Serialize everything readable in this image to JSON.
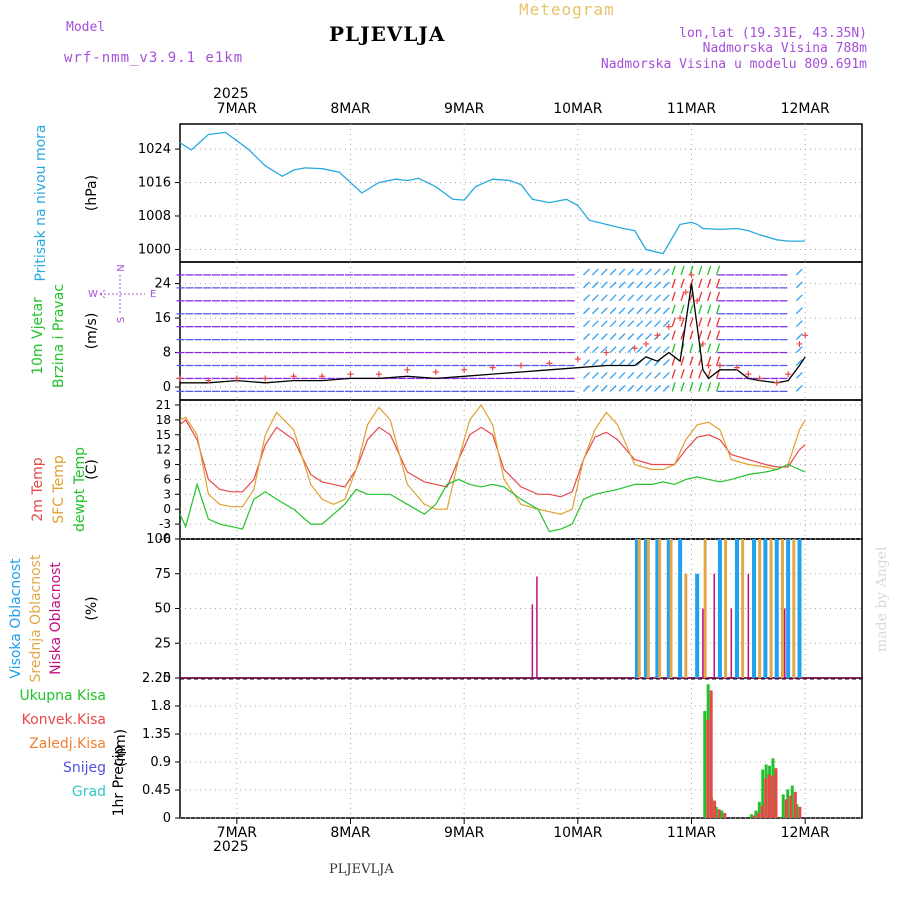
{
  "header": {
    "model_label": "Model",
    "model_name": "wrf-nmm_v3.9.1 e1km",
    "meteogram_label": "Meteogram",
    "station": "PLJEVLJA",
    "coords": "lon,lat (19.31E, 43.35N)",
    "elevation": "Nadmorska Visina 788m",
    "model_elevation": "Nadmorska Visina u modelu 809.691m",
    "signature": "made by Angel",
    "footer": "PLJEVLJA"
  },
  "colors": {
    "pressure": "#29a8e0",
    "temp2m": "#e84848",
    "sfc": "#e0a030",
    "dewpt": "#22c22a",
    "high_cloud": "#1fa0f0",
    "mid_cloud": "#e0a848",
    "low_cloud": "#c01080",
    "total_rain": "#22c22a",
    "conv_rain": "#e84848",
    "frz_rain": "#f08030",
    "snow": "#5050e0",
    "hail": "#30c8c8",
    "wind_label": "#22c22a",
    "wind_dir": "#a64fd8"
  },
  "chart_data": [
    {
      "type": "line",
      "panel": "pressure",
      "ylabel_lines": [
        "Pritisak na nivou mora"
      ],
      "unit": "(hPa)",
      "ylim": [
        997,
        1030
      ],
      "yticks": [
        1000,
        1008,
        1016,
        1024
      ],
      "x_days": [
        0,
        0.1,
        0.25,
        0.4,
        0.5,
        0.6,
        0.75,
        0.9,
        1.0,
        1.1,
        1.25,
        1.4,
        1.5,
        1.6,
        1.75,
        1.9,
        2.0,
        2.1,
        2.25,
        2.4,
        2.5,
        2.6,
        2.75,
        2.9,
        3.0,
        3.1,
        3.25,
        3.4,
        3.5,
        3.6,
        3.75,
        3.9,
        4.0,
        4.1,
        4.25,
        4.4,
        4.5,
        4.55,
        4.6,
        4.75,
        4.9,
        5.0,
        5.1,
        5.25,
        5.35,
        5.5
      ],
      "y": [
        1025.5,
        1023.8,
        1027.5,
        1028.0,
        1026.0,
        1024.0,
        1020.0,
        1017.5,
        1019.0,
        1019.5,
        1019.3,
        1018.5,
        1016.0,
        1013.5,
        1016.0,
        1016.8,
        1016.5,
        1017.0,
        1015.0,
        1012.0,
        1011.8,
        1015.0,
        1016.8,
        1016.5,
        1015.5,
        1012.0,
        1011.2,
        1012.0,
        1010.5,
        1007.0,
        1006.0,
        1005.0,
        1004.5,
        1000.0,
        999.0,
        1006.0,
        1006.5,
        1006.0,
        1005.0,
        1004.8,
        1005.0,
        1004.5,
        1003.5,
        1002.3,
        1002.0,
        1002.0
      ]
    },
    {
      "type": "line",
      "panel": "wind",
      "ylabel_lines": [
        "10m Vjetar",
        "Brzina i Pravac"
      ],
      "unit": "(m/s)",
      "direction_legend": [
        "N",
        "W",
        "E",
        "S"
      ],
      "ylim": [
        -3,
        29
      ],
      "yticks": [
        0,
        8,
        16,
        24
      ],
      "x_days": [
        0,
        0.25,
        0.5,
        0.75,
        1.0,
        1.25,
        1.5,
        1.75,
        2.0,
        2.25,
        2.5,
        2.75,
        3.0,
        3.25,
        3.5,
        3.75,
        4.0,
        4.1,
        4.2,
        4.3,
        4.4,
        4.45,
        4.5,
        4.55,
        4.6,
        4.65,
        4.75,
        4.9,
        5.0,
        5.1,
        5.25,
        5.35,
        5.45,
        5.5
      ],
      "speed": [
        1.0,
        1.0,
        1.5,
        1.0,
        1.5,
        1.5,
        2.0,
        2.0,
        2.5,
        2.0,
        2.5,
        3.0,
        3.5,
        4.0,
        4.5,
        5.0,
        5.0,
        7.0,
        6.0,
        8.0,
        6.0,
        15.0,
        24.0,
        14.0,
        4.0,
        2.0,
        4.0,
        4.0,
        2.0,
        1.5,
        1.0,
        1.5,
        5.0,
        7.0
      ],
      "gust": [
        2.0,
        1.5,
        2.0,
        2.0,
        2.5,
        2.5,
        3.0,
        3.0,
        4.0,
        3.5,
        4.0,
        4.5,
        5.0,
        5.5,
        6.5,
        8.0,
        9.0,
        10.0,
        12.0,
        14.0,
        16.0,
        22.0,
        26.0,
        20.0,
        10.0,
        5.0,
        5.0,
        4.5,
        3.0,
        2.0,
        1.0,
        3.0,
        10.0,
        12.0
      ]
    },
    {
      "type": "line",
      "panel": "temperature",
      "ylabel_lines": [
        "2m Temp",
        "SFC Temp",
        "dewpt Temp"
      ],
      "unit": "(C)",
      "ylim": [
        -6,
        22
      ],
      "yticks": [
        -6,
        -3,
        0,
        3,
        6,
        9,
        12,
        15,
        18,
        21
      ],
      "x_days": [
        0,
        0.05,
        0.15,
        0.25,
        0.35,
        0.45,
        0.55,
        0.65,
        0.75,
        0.85,
        1.0,
        1.15,
        1.25,
        1.35,
        1.45,
        1.55,
        1.65,
        1.75,
        1.85,
        2.0,
        2.15,
        2.25,
        2.35,
        2.45,
        2.55,
        2.65,
        2.75,
        2.85,
        3.0,
        3.15,
        3.25,
        3.35,
        3.45,
        3.55,
        3.65,
        3.75,
        3.85,
        4.0,
        4.15,
        4.25,
        4.35,
        4.45,
        4.55,
        4.65,
        4.75,
        4.85,
        5.0,
        5.15,
        5.25,
        5.35,
        5.45,
        5.5
      ],
      "series": [
        {
          "name": "2m Temp",
          "values": [
            17,
            18,
            14,
            6,
            4,
            3.5,
            3.5,
            6,
            13,
            16.5,
            14,
            7,
            5.5,
            5,
            4.5,
            8,
            14,
            16.5,
            15,
            7.5,
            5.5,
            5,
            4.5,
            10,
            15,
            16.5,
            15,
            8,
            4.5,
            3,
            3,
            2.5,
            3.5,
            10,
            14.5,
            15.5,
            14,
            10,
            9,
            9,
            9,
            12,
            14.5,
            15,
            14,
            11,
            10,
            9,
            8.5,
            8.5,
            12,
            13
          ]
        },
        {
          "name": "SFC Temp",
          "values": [
            18,
            18.5,
            15,
            3,
            1,
            0.5,
            0.5,
            4,
            15,
            19.5,
            16,
            5,
            2,
            1,
            2,
            8,
            17,
            20.5,
            18,
            5,
            1,
            0,
            0,
            10,
            18,
            21,
            17,
            6,
            1,
            0,
            -0.5,
            -1,
            0,
            10,
            16,
            19.5,
            17,
            9,
            8,
            8,
            9,
            14,
            17,
            17.5,
            16,
            10,
            9,
            8.5,
            8,
            9,
            16,
            18
          ]
        },
        {
          "name": "dewpt Temp",
          "values": [
            -1,
            -3.5,
            5,
            -2,
            -3,
            -3.5,
            -4,
            2,
            3.5,
            2,
            0,
            -3,
            -3,
            -1,
            1,
            4,
            3,
            3,
            3,
            1,
            -1,
            1,
            5,
            6,
            5,
            4.5,
            5,
            4.5,
            2,
            0,
            -4.5,
            -4,
            -3,
            2,
            3,
            3.5,
            4,
            5,
            5,
            5.5,
            5,
            6,
            6.5,
            6,
            5.5,
            6,
            7,
            7.5,
            8,
            9,
            8,
            7.5
          ]
        }
      ]
    },
    {
      "type": "bar",
      "panel": "cloud",
      "ylabel_lines": [
        "Visoka Oblacnost",
        "Srednja Oblacnost",
        "Niska Oblacnost"
      ],
      "unit": "(%)",
      "ylim": [
        0,
        100
      ],
      "yticks": [
        0,
        25,
        50,
        75,
        100
      ],
      "series": [
        {
          "name": "Visoka Oblacnost",
          "x_days": [
            4.02,
            4.1,
            4.2,
            4.3,
            4.4,
            4.55,
            4.75,
            4.9,
            5.05,
            5.15,
            5.25,
            5.35,
            5.45
          ],
          "values": [
            100,
            100,
            100,
            100,
            100,
            75,
            100,
            100,
            100,
            100,
            100,
            100,
            100
          ]
        },
        {
          "name": "Srednja Oblacnost",
          "x_days": [
            4.04,
            4.12,
            4.22,
            4.32,
            4.45,
            4.62,
            4.8,
            4.95,
            5.1,
            5.2,
            5.3,
            5.4
          ],
          "values": [
            100,
            100,
            100,
            100,
            75,
            100,
            100,
            100,
            100,
            100,
            100,
            100
          ]
        },
        {
          "name": "Niska Oblacnost",
          "x_days": [
            3.1,
            3.14,
            4.6,
            4.7,
            4.85,
            5.0,
            5.32
          ],
          "values": [
            53,
            73,
            50,
            75,
            50,
            75,
            50
          ]
        }
      ]
    },
    {
      "type": "bar",
      "panel": "precip",
      "ylabel_lines": [
        "1hr Precip"
      ],
      "unit": "(mm)",
      "legend": [
        "Ukupna Kisa",
        "Konvek.Kisa",
        "Zaledj.Kisa",
        "Snijeg",
        "Grad"
      ],
      "ylim": [
        0,
        2.25
      ],
      "yticks": [
        0,
        0.45,
        0.9,
        1.35,
        1.8,
        2.25
      ],
      "x_days": [
        4.63,
        4.66,
        4.69,
        4.73,
        4.78,
        5.04,
        5.08,
        5.11,
        5.14,
        5.17,
        5.2,
        5.23,
        5.26,
        5.32,
        5.36,
        5.4,
        5.44
      ],
      "series": [
        {
          "name": "Ukupna Kisa",
          "values": [
            1.72,
            2.15,
            0.32,
            0.18,
            0.12,
            0.06,
            0.12,
            0.26,
            0.78,
            0.86,
            0.84,
            0.96,
            0.02,
            0.38,
            0.46,
            0.52,
            0.22
          ]
        },
        {
          "name": "Konvek.Kisa",
          "values": [
            1.58,
            2.05,
            0.28,
            0.14,
            0.08,
            0.04,
            0.08,
            0.2,
            0.64,
            0.7,
            0.68,
            0.8,
            0.0,
            0.3,
            0.36,
            0.42,
            0.18
          ]
        }
      ]
    }
  ],
  "x_axis": {
    "year": "2025",
    "dates": [
      "7MAR",
      "8MAR",
      "9MAR",
      "10MAR",
      "11MAR",
      "12MAR"
    ],
    "date_offsets_days": [
      0.5,
      1.5,
      2.5,
      3.5,
      4.5,
      5.5
    ],
    "range_days": [
      0,
      6
    ]
  }
}
